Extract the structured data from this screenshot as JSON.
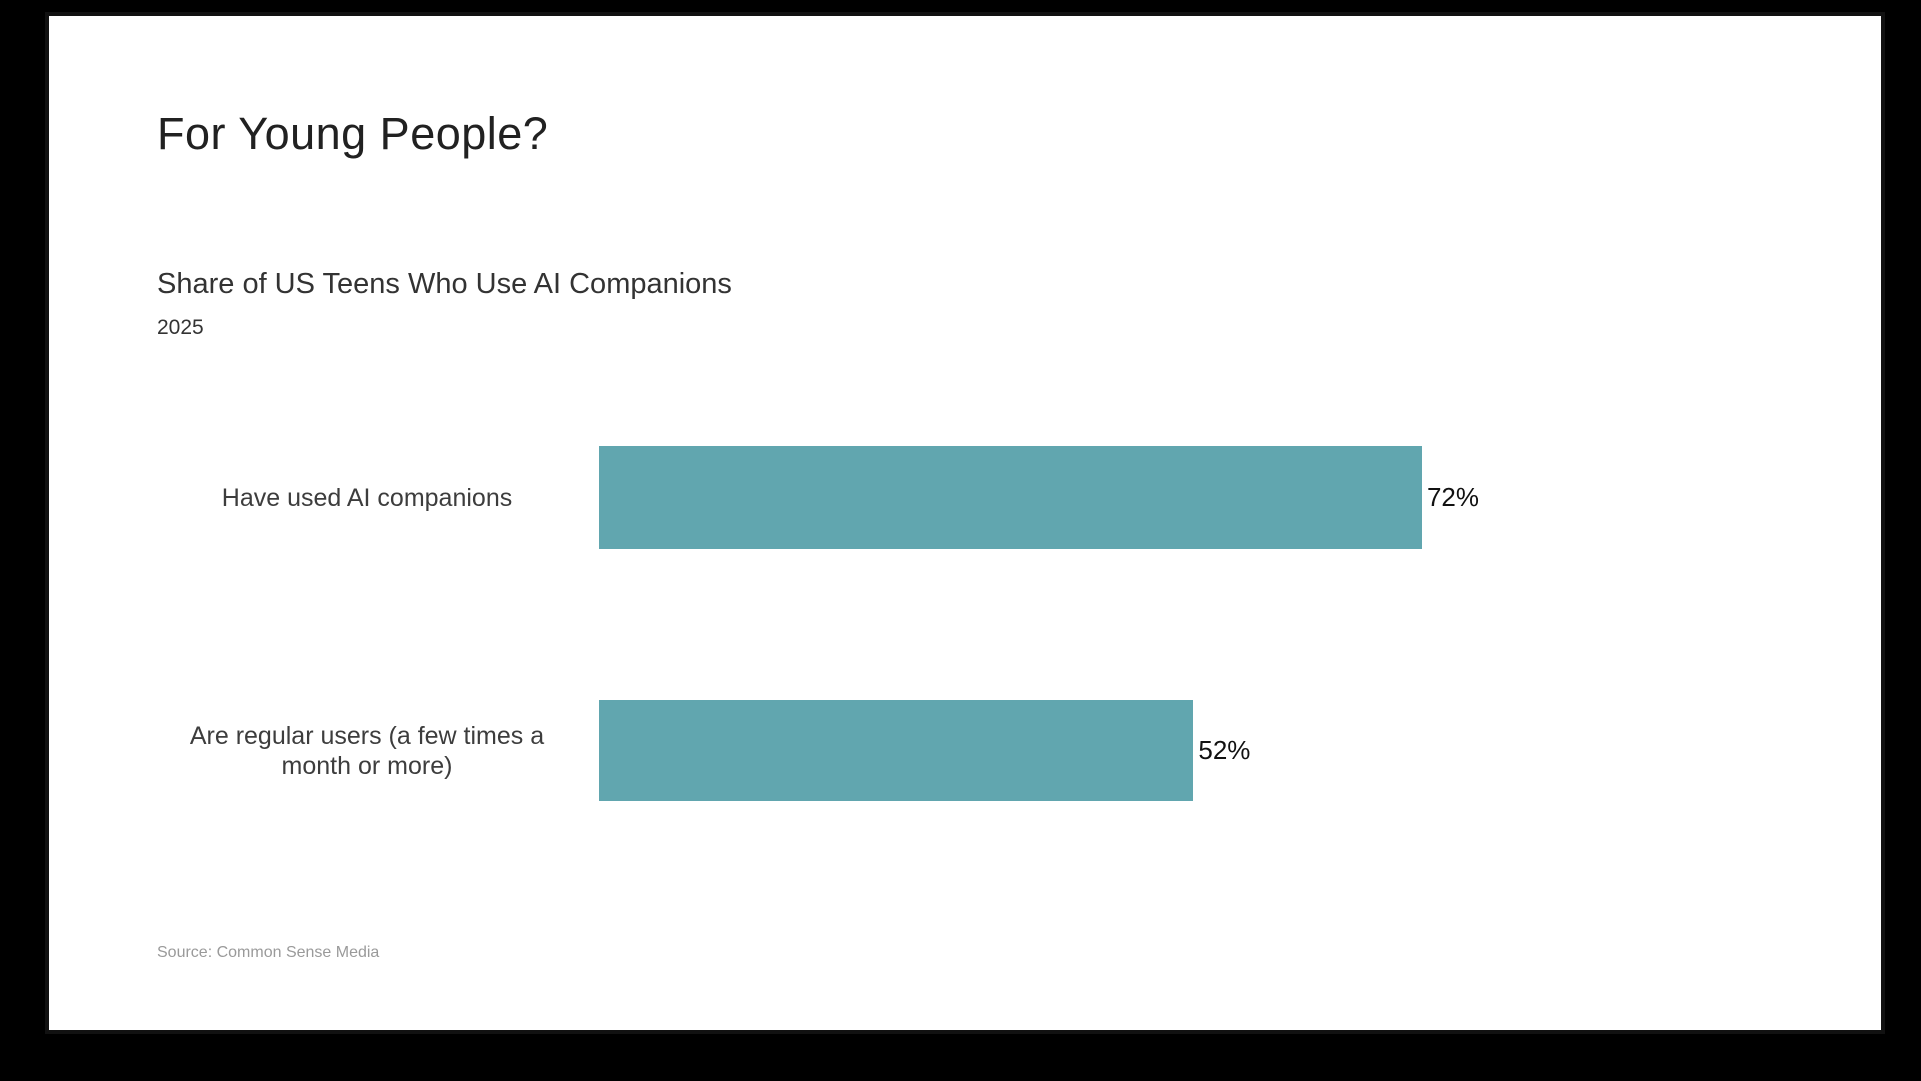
{
  "slide": {
    "title": "For Young People?"
  },
  "colors": {
    "bar": "#61a6af",
    "background": "#ffffff",
    "frame": "#000000"
  },
  "chart_data": {
    "type": "bar",
    "orientation": "horizontal",
    "title": "Share of US Teens Who Use AI Companions",
    "subtitle": "2025",
    "categories": [
      "Have used AI companions",
      "Are regular users (a few times a month or more)"
    ],
    "values": [
      72,
      52
    ],
    "value_labels": [
      "72%",
      "52%"
    ],
    "unit": "%",
    "xlim": [
      0,
      100
    ],
    "grid": false,
    "legend": false,
    "source": "Source: Common Sense Media"
  }
}
